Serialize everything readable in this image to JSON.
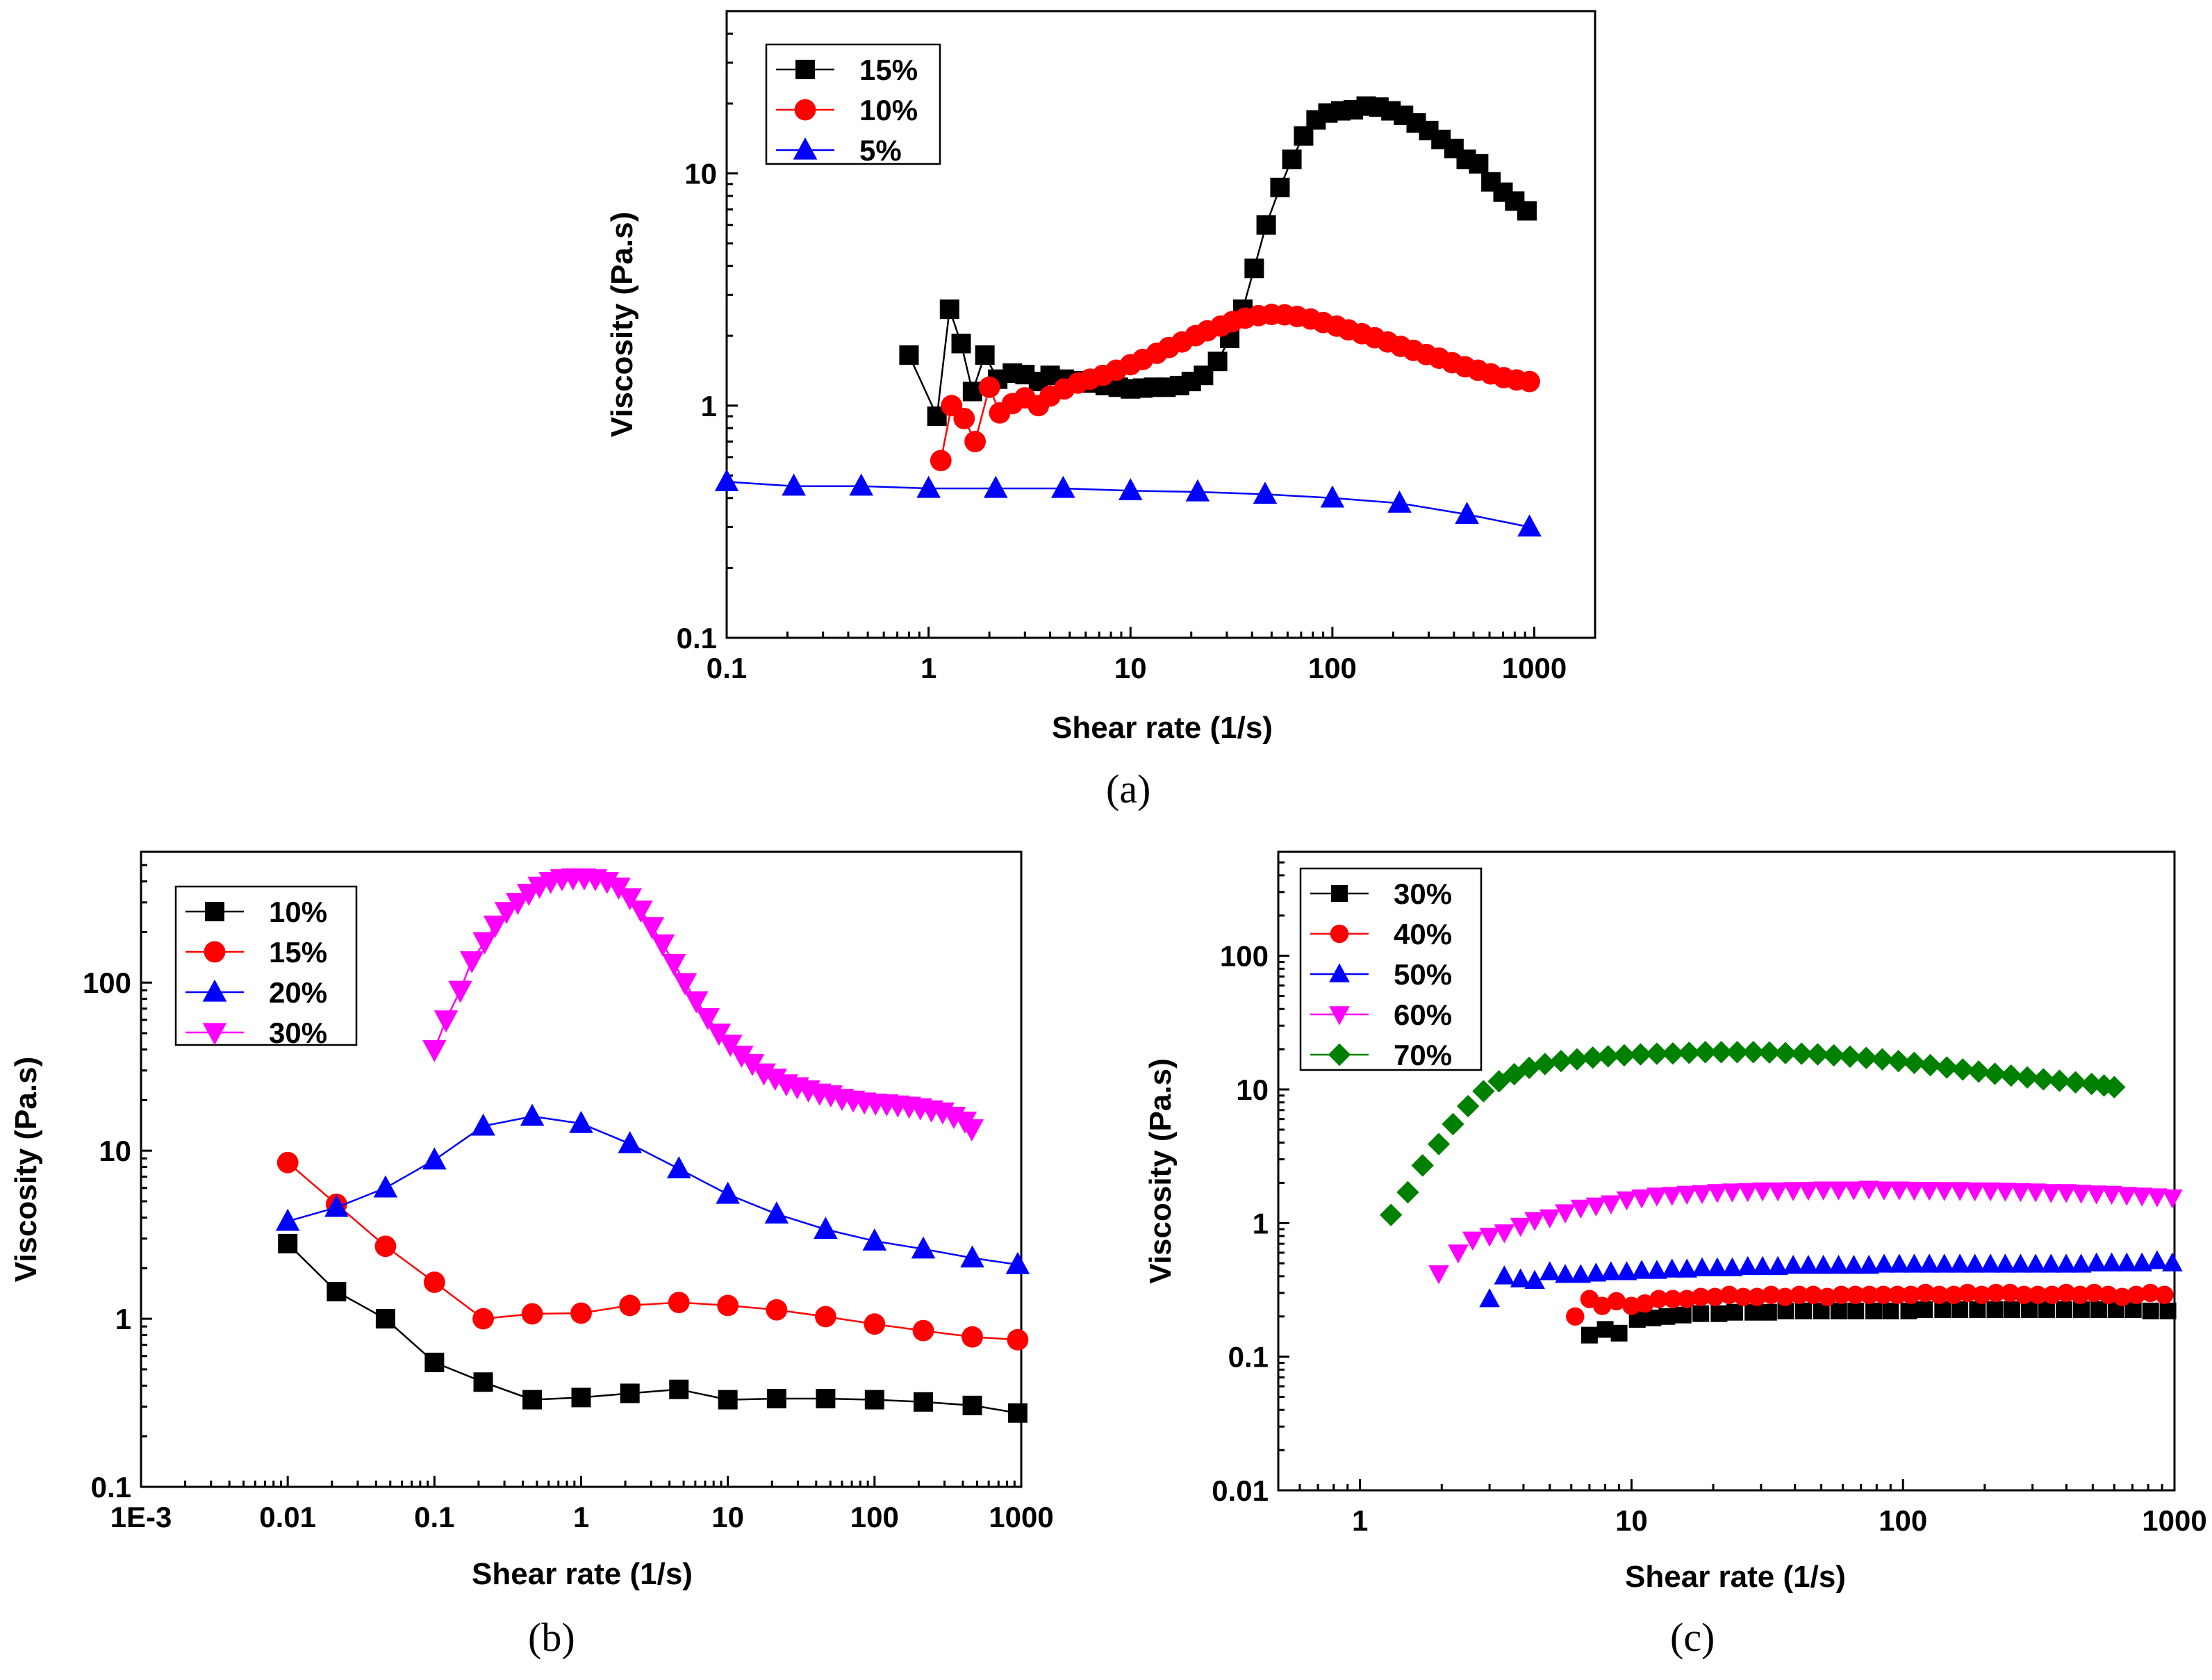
{
  "chart_data": [
    {
      "type": "line",
      "panel_label": "(a)",
      "xlabel": "Shear rate (1/s)",
      "ylabel": "Viscosity (Pa.s)",
      "xscale": "log",
      "yscale": "log",
      "xlim": [
        0.1,
        2000
      ],
      "ylim": [
        0.1,
        50
      ],
      "xticks": [
        0.1,
        1,
        10,
        100,
        1000
      ],
      "xtick_labels": [
        "0.1",
        "1",
        "10",
        "100",
        "1000"
      ],
      "yticks": [
        0.1,
        1,
        10
      ],
      "ytick_labels": [
        "0.1",
        "1",
        "10"
      ],
      "legend_position": "top-left",
      "series": [
        {
          "name": "15%",
          "color": "#000000",
          "marker": "square",
          "x": [
            0.8,
            1.1,
            1.27,
            1.45,
            1.65,
            1.9,
            2.2,
            2.6,
            3.0,
            3.5,
            4.0,
            4.7,
            5.5,
            6.5,
            7.5,
            8.7,
            10,
            11.5,
            13,
            15,
            17.5,
            20,
            23,
            27,
            31,
            36,
            41,
            47,
            55,
            63,
            72,
            83,
            95,
            110,
            127,
            147,
            170,
            195,
            225,
            260,
            300,
            345,
            400,
            460,
            530,
            610,
            700,
            800,
            920
          ],
          "y": [
            1.65,
            0.9,
            2.6,
            1.85,
            1.15,
            1.65,
            1.3,
            1.38,
            1.36,
            1.27,
            1.35,
            1.3,
            1.28,
            1.25,
            1.22,
            1.2,
            1.18,
            1.19,
            1.2,
            1.2,
            1.22,
            1.27,
            1.35,
            1.55,
            1.95,
            2.6,
            3.9,
            6.0,
            8.7,
            11.5,
            14.5,
            17.0,
            18.2,
            18.6,
            18.8,
            19.5,
            19.3,
            18.6,
            17.8,
            16.5,
            15.3,
            14.0,
            12.8,
            11.5,
            11.0,
            9.2,
            8.3,
            7.6,
            6.9
          ]
        },
        {
          "name": "10%",
          "color": "#ff0000",
          "marker": "circle",
          "x": [
            1.15,
            1.3,
            1.5,
            1.7,
            2.0,
            2.25,
            2.6,
            3.0,
            3.5,
            4.0,
            4.7,
            5.5,
            6.3,
            7.3,
            8.5,
            10,
            11.5,
            13.5,
            15.5,
            18,
            21,
            24,
            28,
            32,
            37,
            43,
            50,
            58,
            67,
            78,
            90,
            105,
            120,
            140,
            162,
            188,
            218,
            252,
            292,
            338,
            392,
            454,
            526,
            609,
            705,
            817,
            946
          ],
          "y": [
            0.58,
            1.0,
            0.88,
            0.7,
            1.2,
            0.93,
            1.02,
            1.08,
            1.0,
            1.1,
            1.18,
            1.25,
            1.3,
            1.35,
            1.42,
            1.5,
            1.58,
            1.68,
            1.78,
            1.88,
            2.0,
            2.1,
            2.2,
            2.3,
            2.38,
            2.44,
            2.47,
            2.46,
            2.42,
            2.36,
            2.28,
            2.2,
            2.12,
            2.04,
            1.96,
            1.88,
            1.8,
            1.73,
            1.66,
            1.6,
            1.53,
            1.47,
            1.42,
            1.37,
            1.32,
            1.29,
            1.27
          ]
        },
        {
          "name": "5%",
          "color": "#0000ff",
          "marker": "triangle-up",
          "x": [
            0.1,
            0.215,
            0.464,
            1.0,
            2.15,
            4.64,
            10,
            21.5,
            46.4,
            100,
            215,
            464,
            946
          ],
          "y": [
            0.47,
            0.45,
            0.45,
            0.44,
            0.44,
            0.44,
            0.43,
            0.425,
            0.415,
            0.4,
            0.38,
            0.34,
            0.3
          ]
        }
      ]
    },
    {
      "type": "line",
      "panel_label": "(b)",
      "xlabel": "Shear rate (1/s)",
      "ylabel": "Viscosity (Pa.s)",
      "xscale": "log",
      "yscale": "log",
      "xlim": [
        0.001,
        1000
      ],
      "ylim": [
        0.1,
        600
      ],
      "xticks": [
        0.001,
        0.01,
        0.1,
        1,
        10,
        100,
        1000
      ],
      "xtick_labels": [
        "1E-3",
        "0.01",
        "0.1",
        "1",
        "10",
        "100",
        "1000"
      ],
      "yticks": [
        0.1,
        1,
        10,
        100
      ],
      "ytick_labels": [
        "0.1",
        "1",
        "10",
        "100"
      ],
      "legend_position": "top-left",
      "series": [
        {
          "name": "10%",
          "color": "#000000",
          "marker": "square",
          "x": [
            0.01,
            0.0215,
            0.0464,
            0.1,
            0.215,
            0.464,
            1.0,
            2.15,
            4.64,
            10,
            21.5,
            46.4,
            100,
            215,
            464,
            946
          ],
          "y": [
            2.8,
            1.45,
            1.0,
            0.55,
            0.42,
            0.33,
            0.34,
            0.36,
            0.38,
            0.33,
            0.335,
            0.335,
            0.33,
            0.32,
            0.305,
            0.275
          ]
        },
        {
          "name": "15%",
          "color": "#ff0000",
          "marker": "circle",
          "x": [
            0.01,
            0.0215,
            0.0464,
            0.1,
            0.215,
            0.464,
            1.0,
            2.15,
            4.64,
            10,
            21.5,
            46.4,
            100,
            215,
            464,
            946
          ],
          "y": [
            8.5,
            4.8,
            2.7,
            1.65,
            1.0,
            1.07,
            1.08,
            1.2,
            1.25,
            1.2,
            1.13,
            1.03,
            0.93,
            0.85,
            0.78,
            0.75
          ]
        },
        {
          "name": "20%",
          "color": "#0000ff",
          "marker": "triangle-up",
          "x": [
            0.01,
            0.0215,
            0.0464,
            0.1,
            0.215,
            0.464,
            1.0,
            2.15,
            4.64,
            10,
            21.5,
            46.4,
            100,
            215,
            464,
            946
          ],
          "y": [
            3.8,
            4.6,
            6.0,
            8.8,
            14.0,
            16.0,
            14.5,
            11.0,
            7.8,
            5.5,
            4.2,
            3.4,
            2.9,
            2.6,
            2.3,
            2.1
          ]
        },
        {
          "name": "30%",
          "color": "#ff00ff",
          "marker": "triangle-down",
          "x": [
            0.1,
            0.12,
            0.15,
            0.18,
            0.22,
            0.26,
            0.31,
            0.37,
            0.44,
            0.52,
            0.62,
            0.74,
            0.88,
            1.05,
            1.25,
            1.5,
            1.8,
            2.15,
            2.55,
            3.05,
            3.6,
            4.3,
            5.1,
            6.1,
            7.3,
            8.7,
            10.4,
            12.4,
            14.7,
            17.6,
            21,
            25,
            29.7,
            35.4,
            42.2,
            50.3,
            60,
            71.5,
            85.2,
            101.6,
            121,
            144,
            172,
            205,
            244,
            291,
            347,
            413,
            460
          ],
          "y": [
            40,
            60,
            90,
            135,
            175,
            220,
            265,
            300,
            340,
            375,
            400,
            415,
            420,
            420,
            415,
            400,
            370,
            320,
            270,
            215,
            170,
            130,
            100,
            78,
            62,
            50,
            43,
            37,
            33,
            29,
            27,
            25,
            24,
            23,
            22,
            21.5,
            20.5,
            20,
            19.5,
            19.2,
            19,
            18.7,
            18.4,
            18,
            17.5,
            17,
            16,
            15,
            13.5
          ]
        }
      ]
    },
    {
      "type": "scatter",
      "panel_label": "(c)",
      "xlabel": "Shear rate (1/s)",
      "ylabel": "Viscosity (Pa.s)",
      "xscale": "log",
      "yscale": "log",
      "xlim": [
        0.5,
        1000
      ],
      "ylim": [
        0.01,
        600
      ],
      "xticks": [
        1,
        10,
        100,
        1000
      ],
      "xtick_labels": [
        "1",
        "10",
        "100",
        "1000"
      ],
      "yticks": [
        0.01,
        0.1,
        1,
        10,
        100
      ],
      "ytick_labels": [
        "0.01",
        "0.1",
        "1",
        "10",
        "100"
      ],
      "legend_position": "top-left",
      "series": [
        {
          "name": "30%",
          "color": "#000000",
          "marker": "square",
          "x": [
            7.0,
            8.0,
            9.0,
            10.5,
            12,
            13.5,
            15.5,
            18,
            21,
            24,
            28,
            32,
            37,
            43,
            50,
            58,
            67,
            78,
            90,
            105,
            120,
            140,
            162,
            188,
            218,
            252,
            292,
            338,
            392,
            454,
            526,
            609,
            705,
            817,
            946
          ],
          "y": [
            0.145,
            0.16,
            0.15,
            0.19,
            0.195,
            0.2,
            0.205,
            0.21,
            0.21,
            0.215,
            0.215,
            0.215,
            0.22,
            0.22,
            0.22,
            0.22,
            0.22,
            0.22,
            0.22,
            0.22,
            0.225,
            0.225,
            0.225,
            0.225,
            0.225,
            0.225,
            0.225,
            0.225,
            0.225,
            0.225,
            0.225,
            0.225,
            0.225,
            0.22,
            0.22
          ]
        },
        {
          "name": "40%",
          "color": "#ff0000",
          "marker": "circle",
          "x": [
            6.2,
            7.0,
            7.8,
            8.8,
            10,
            11.2,
            12.6,
            14.2,
            16,
            18,
            20.3,
            22.9,
            25.8,
            29,
            32.7,
            36.8,
            41.5,
            46.7,
            52.6,
            59.3,
            66.8,
            75.2,
            84.7,
            95.4,
            107,
            121,
            136,
            154,
            173,
            195,
            220,
            248,
            279,
            314,
            354,
            399,
            449,
            506,
            570,
            642,
            723,
            815,
            918
          ],
          "y": [
            0.2,
            0.27,
            0.24,
            0.26,
            0.24,
            0.25,
            0.27,
            0.27,
            0.27,
            0.28,
            0.28,
            0.29,
            0.28,
            0.28,
            0.29,
            0.28,
            0.29,
            0.29,
            0.28,
            0.29,
            0.29,
            0.29,
            0.29,
            0.29,
            0.29,
            0.3,
            0.29,
            0.29,
            0.3,
            0.29,
            0.3,
            0.3,
            0.29,
            0.29,
            0.29,
            0.3,
            0.29,
            0.3,
            0.29,
            0.28,
            0.29,
            0.3,
            0.29
          ]
        },
        {
          "name": "50%",
          "color": "#0000ff",
          "marker": "triangle-up",
          "x": [
            3.0,
            3.4,
            3.9,
            4.4,
            5.0,
            5.7,
            6.5,
            7.4,
            8.4,
            9.6,
            10.9,
            12.4,
            14.1,
            16,
            18.2,
            20.7,
            23.5,
            26.8,
            30.4,
            34.6,
            39.4,
            44.8,
            50.9,
            57.9,
            65.9,
            74.9,
            85.2,
            96.9,
            110,
            125,
            142,
            162,
            184,
            210,
            238,
            271,
            308,
            351,
            399,
            453,
            516,
            587,
            667,
            759,
            863,
            982
          ],
          "y": [
            0.27,
            0.4,
            0.38,
            0.37,
            0.43,
            0.41,
            0.41,
            0.42,
            0.43,
            0.43,
            0.44,
            0.44,
            0.45,
            0.45,
            0.46,
            0.46,
            0.46,
            0.47,
            0.47,
            0.47,
            0.48,
            0.48,
            0.48,
            0.48,
            0.48,
            0.48,
            0.49,
            0.49,
            0.49,
            0.49,
            0.49,
            0.49,
            0.49,
            0.49,
            0.49,
            0.49,
            0.49,
            0.49,
            0.49,
            0.49,
            0.5,
            0.5,
            0.5,
            0.5,
            0.52,
            0.5
          ]
        },
        {
          "name": "60%",
          "color": "#ff00ff",
          "marker": "triangle-down",
          "x": [
            1.95,
            2.3,
            2.6,
            3.0,
            3.4,
            3.9,
            4.4,
            5.0,
            5.7,
            6.5,
            7.4,
            8.4,
            9.6,
            10.9,
            12.4,
            14.1,
            16,
            18.2,
            20.7,
            23.5,
            26.8,
            30.4,
            34.6,
            39.4,
            44.8,
            50.9,
            57.9,
            65.9,
            74.9,
            85.2,
            96.9,
            110,
            125,
            142,
            162,
            184,
            210,
            238,
            271,
            308,
            351,
            399,
            453,
            516,
            587,
            667,
            759,
            863,
            982
          ],
          "y": [
            0.42,
            0.6,
            0.75,
            0.8,
            0.85,
            0.95,
            1.05,
            1.1,
            1.2,
            1.3,
            1.35,
            1.4,
            1.5,
            1.55,
            1.6,
            1.62,
            1.65,
            1.67,
            1.7,
            1.72,
            1.73,
            1.75,
            1.75,
            1.76,
            1.77,
            1.78,
            1.78,
            1.78,
            1.8,
            1.78,
            1.78,
            1.77,
            1.77,
            1.76,
            1.76,
            1.75,
            1.75,
            1.74,
            1.73,
            1.72,
            1.7,
            1.7,
            1.68,
            1.66,
            1.65,
            1.62,
            1.6,
            1.58,
            1.55
          ]
        },
        {
          "name": "70%",
          "color": "#008000",
          "marker": "diamond",
          "x": [
            1.3,
            1.5,
            1.7,
            1.95,
            2.2,
            2.5,
            2.85,
            3.25,
            3.7,
            4.2,
            4.8,
            5.5,
            6.3,
            7.2,
            8.2,
            9.4,
            10.8,
            12.4,
            14.2,
            16.3,
            18.7,
            21.4,
            24.5,
            28.1,
            32.2,
            36.9,
            42.3,
            48.5,
            55.6,
            63.8,
            73.2,
            83.9,
            96.2,
            110,
            126,
            145,
            166,
            190,
            218,
            250,
            287,
            329,
            377,
            432,
            495,
            550,
            600
          ],
          "y": [
            1.15,
            1.7,
            2.7,
            3.9,
            5.5,
            7.5,
            9.7,
            11.5,
            13.0,
            14.5,
            15.5,
            16.3,
            16.8,
            17.3,
            17.7,
            18.0,
            18.3,
            18.5,
            18.6,
            18.8,
            19.0,
            19.0,
            19.0,
            19.0,
            18.9,
            18.7,
            18.5,
            18.3,
            18.0,
            17.6,
            17.2,
            16.8,
            16.3,
            15.8,
            15.2,
            14.6,
            14.1,
            13.6,
            13.1,
            12.7,
            12.3,
            11.9,
            11.6,
            11.3,
            11.0,
            10.7,
            10.4
          ]
        }
      ]
    }
  ]
}
